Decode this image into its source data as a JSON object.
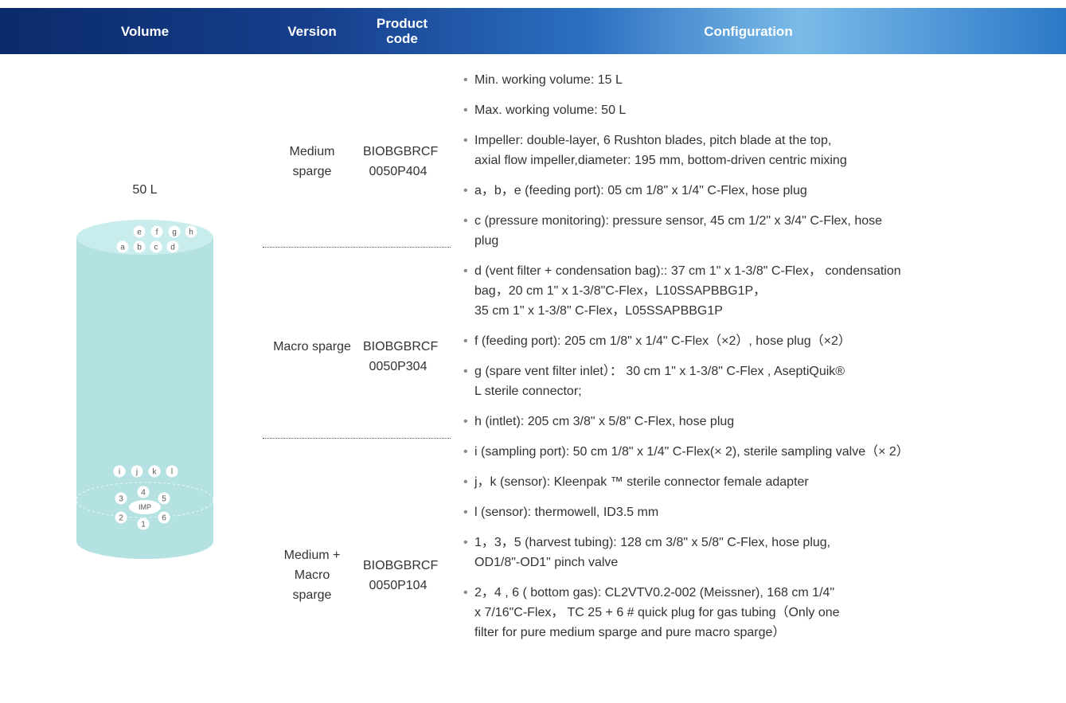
{
  "table": {
    "headers": [
      "Volume",
      "Version",
      "Product code",
      "Configuration"
    ],
    "volume": "50 L",
    "diagram": {
      "top_ports": [
        "e",
        "f",
        "g",
        "h",
        "a",
        "b",
        "c",
        "d"
      ],
      "bottom_ports": [
        "i",
        "j",
        "k",
        "l"
      ],
      "gas_ports": [
        "4",
        "3",
        "5",
        "2",
        "6",
        "1"
      ],
      "impeller": "IMP"
    },
    "versions": [
      {
        "name": "Medium sparge",
        "code": "BIOBGBRCF 0050P404"
      },
      {
        "name": "Macro sparge",
        "code": "BIOBGBRCF 0050P304"
      },
      {
        "name": "Medium + Macro sparge",
        "code": "BIOBGBRCF 0050P104"
      }
    ],
    "configuration": [
      [
        "Min. working volume: 15 L"
      ],
      [
        "Max. working volume: 50 L"
      ],
      [
        "Impeller: double-layer, 6 Rushton blades, pitch blade at the top,",
        "axial flow impeller,diameter: 195 mm, bottom-driven centric mixing"
      ],
      [
        "a，b，e (feeding port): 05 cm 1/8\" x 1/4\" C-Flex, hose plug"
      ],
      [
        "c (pressure monitoring): pressure sensor, 45 cm 1/2\" x 3/4\" C-Flex, hose",
        "plug"
      ],
      [
        "d (vent filter + condensation bag):: 37 cm 1\" x 1-3/8\" C-Flex， condensation",
        "bag，20 cm 1\" x 1-3/8\"C-Flex，L10SSAPBBG1P，",
        "35 cm 1\" x 1-3/8\" C-Flex，L05SSAPBBG1P"
      ],
      [
        "f (feeding port): 205 cm 1/8\" x 1/4\" C-Flex（×2）, hose plug（×2）"
      ],
      [
        "g (spare vent filter inlet）： 30 cm 1\" x 1-3/8\" C-Flex , AseptiQuik®",
        "L sterile connector;"
      ],
      [
        "h (intlet): 205 cm 3/8\" x 5/8\" C-Flex, hose plug"
      ],
      [
        "i (sampling port): 50 cm 1/8\" x 1/4\" C-Flex(× 2), sterile sampling valve（× 2）"
      ],
      [
        "j，k (sensor): Kleenpak ™ sterile connector female adapter"
      ],
      [
        "l (sensor): thermowell, ID3.5 mm"
      ],
      [
        "1，3，5 (harvest tubing): 128 cm 3/8\" x 5/8\" C-Flex, hose plug,",
        "OD1/8\"-OD1\" pinch valve"
      ],
      [
        "2，4 , 6 ( bottom gas): CL2VTV0.2-002 (Meissner), 168 cm 1/4\"",
        "x 7/16\"C-Flex， TC 25 + 6 # quick plug for gas tubing（Only one",
        "filter for pure medium sparge and pure macro sparge）"
      ]
    ]
  }
}
